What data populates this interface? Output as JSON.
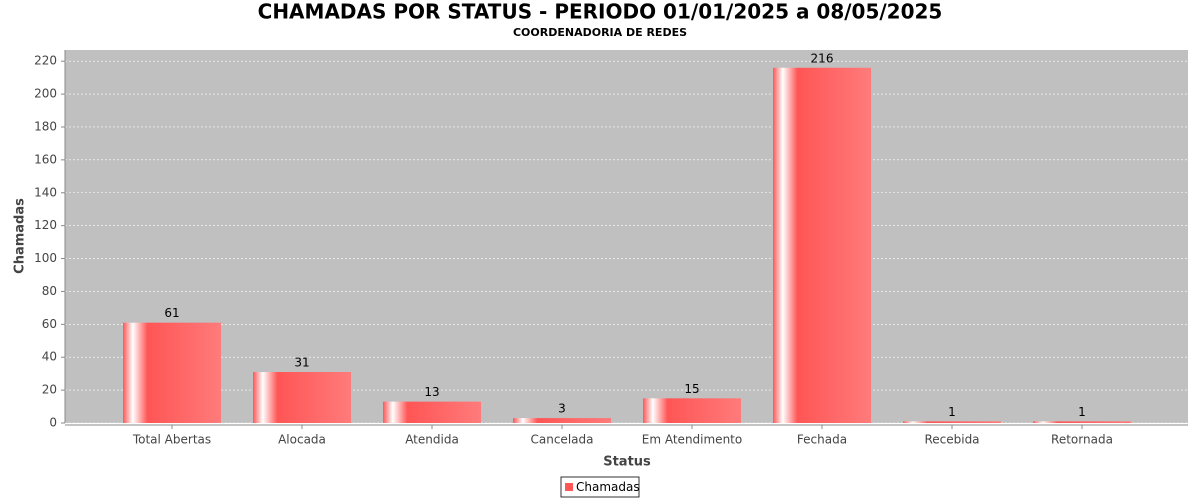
{
  "chart_data": {
    "type": "bar",
    "title": "CHAMADAS POR STATUS - PERIODO 01/01/2025 a 08/05/2025",
    "subtitle": "COORDENADORIA DE REDES",
    "x_label": "Status",
    "y_label": "Chamadas",
    "categories": [
      "Total Abertas",
      "Alocada",
      "Atendida",
      "Cancelada",
      "Em Atendimento",
      "Fechada",
      "Recebida",
      "Retornada"
    ],
    "series": [
      {
        "name": "Chamadas",
        "color": "#ff5555",
        "values": [
          61,
          31,
          13,
          3,
          15,
          216,
          1,
          1
        ]
      }
    ],
    "ylim": [
      0,
      226.8
    ],
    "yticks": [
      0,
      20,
      40,
      60,
      80,
      100,
      120,
      140,
      160,
      180,
      200,
      220
    ],
    "grid": true,
    "legend": "bottom"
  }
}
